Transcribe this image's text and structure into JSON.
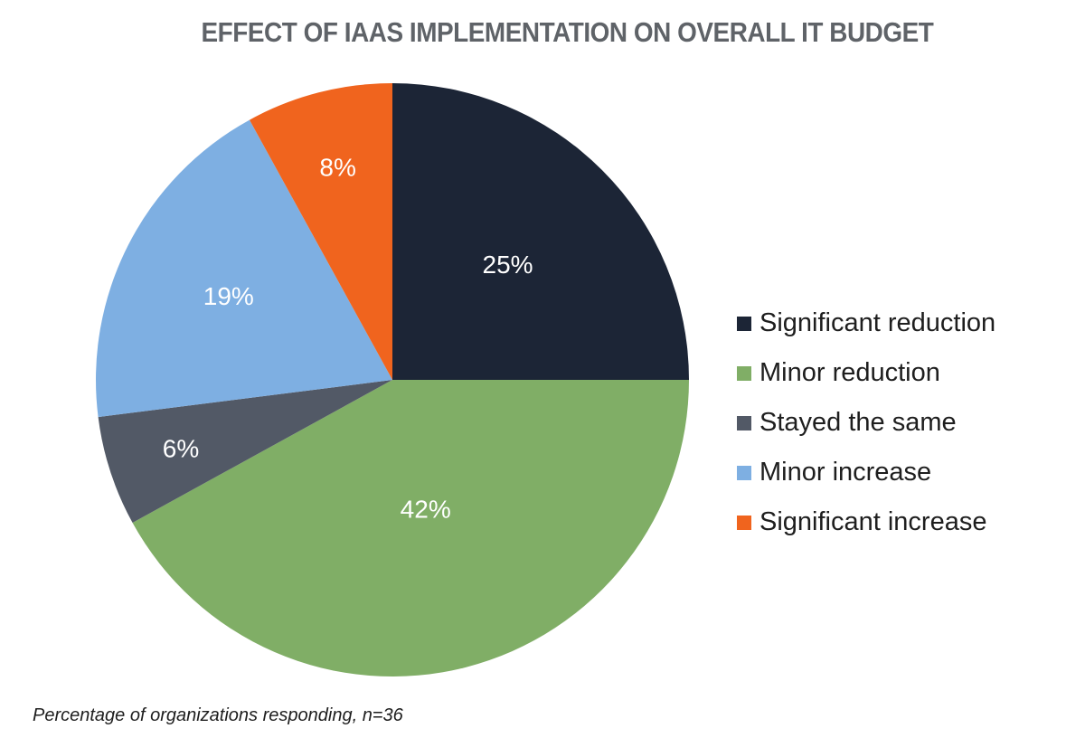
{
  "chart_data": {
    "type": "pie",
    "title": "EFFECT OF IAAS IMPLEMENTATION ON OVERALL IT BUDGET",
    "footnote": "Percentage of organizations responding, n=36",
    "legend_position": "right",
    "slices": [
      {
        "name": "Significant reduction",
        "value": 25,
        "label": "25%",
        "color": "#1c2536"
      },
      {
        "name": "Minor reduction",
        "value": 42,
        "label": "42%",
        "color": "#80ae66"
      },
      {
        "name": "Stayed the same",
        "value": 6,
        "label": "6%",
        "color": "#525966"
      },
      {
        "name": "Minor increase",
        "value": 19,
        "label": "19%",
        "color": "#7eafe2"
      },
      {
        "name": "Significant increase",
        "value": 8,
        "label": "8%",
        "color": "#f0641e"
      }
    ]
  }
}
